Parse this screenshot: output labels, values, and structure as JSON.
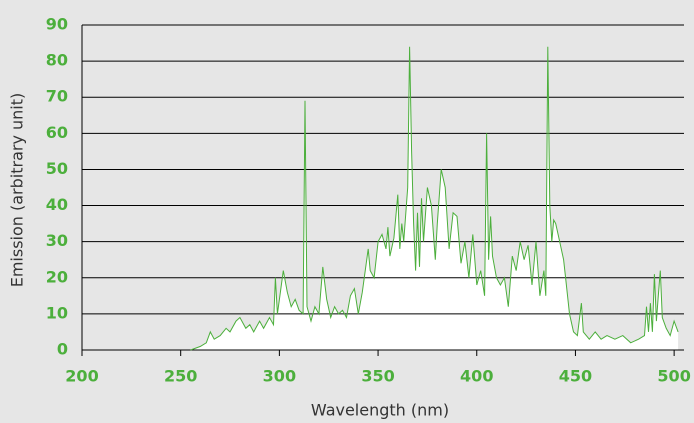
{
  "chart_data": {
    "type": "line",
    "xlabel": "Wavelength (nm)",
    "ylabel": "Emission (arbitrary unit)",
    "color": "#4caf3c",
    "fill": "#ffffff",
    "grid": true,
    "xlim": [
      200,
      505
    ],
    "ylim": [
      0,
      90
    ],
    "xticks": [
      200,
      250,
      300,
      350,
      400,
      450,
      500
    ],
    "yticks": [
      0,
      10,
      20,
      30,
      40,
      50,
      60,
      70,
      80,
      90
    ],
    "x": [
      255,
      260,
      263,
      265,
      267,
      270,
      273,
      275,
      278,
      280,
      283,
      285,
      287,
      290,
      292,
      295,
      297,
      298,
      299,
      300,
      302,
      304,
      306,
      308,
      310,
      312,
      313,
      314,
      316,
      318,
      320,
      322,
      324,
      326,
      328,
      330,
      332,
      334,
      336,
      338,
      340,
      342,
      345,
      346,
      348,
      350,
      352,
      354,
      355,
      356,
      358,
      360,
      361,
      362,
      363,
      365,
      366,
      367,
      368,
      369,
      370,
      371,
      372,
      373,
      375,
      377,
      379,
      380,
      382,
      384,
      386,
      388,
      390,
      392,
      394,
      396,
      398,
      400,
      402,
      404,
      405,
      406,
      407,
      408,
      410,
      412,
      414,
      416,
      418,
      420,
      422,
      424,
      426,
      428,
      430,
      432,
      434,
      435,
      436,
      437,
      438,
      439,
      440,
      442,
      444,
      445,
      447,
      449,
      451,
      453,
      454,
      457,
      460,
      463,
      466,
      470,
      474,
      478,
      482,
      485,
      486,
      487,
      488,
      489,
      490,
      491,
      492,
      493,
      494,
      496,
      498,
      500,
      502
    ],
    "values": [
      0,
      1,
      2,
      5,
      3,
      4,
      6,
      5,
      8,
      9,
      6,
      7,
      5,
      8,
      6,
      9,
      7,
      20,
      10,
      14,
      22,
      16,
      12,
      14,
      11,
      10,
      69,
      12,
      8,
      12,
      10,
      23,
      14,
      9,
      12,
      10,
      11,
      9,
      15,
      17,
      10,
      16,
      28,
      22,
      20,
      30,
      32,
      28,
      34,
      26,
      31,
      43,
      28,
      35,
      30,
      45,
      84,
      55,
      35,
      22,
      38,
      23,
      42,
      30,
      45,
      40,
      25,
      35,
      50,
      45,
      28,
      38,
      37,
      24,
      30,
      20,
      32,
      18,
      22,
      15,
      60,
      25,
      37,
      26,
      20,
      18,
      20,
      12,
      26,
      22,
      30,
      25,
      29,
      18,
      30,
      15,
      22,
      15,
      84,
      40,
      30,
      36,
      35,
      30,
      25,
      20,
      10,
      5,
      4,
      13,
      5,
      3,
      5,
      3,
      4,
      3,
      4,
      2,
      3,
      4,
      12,
      5,
      13,
      5,
      21,
      8,
      15,
      22,
      9,
      6,
      4,
      8,
      5
    ]
  }
}
